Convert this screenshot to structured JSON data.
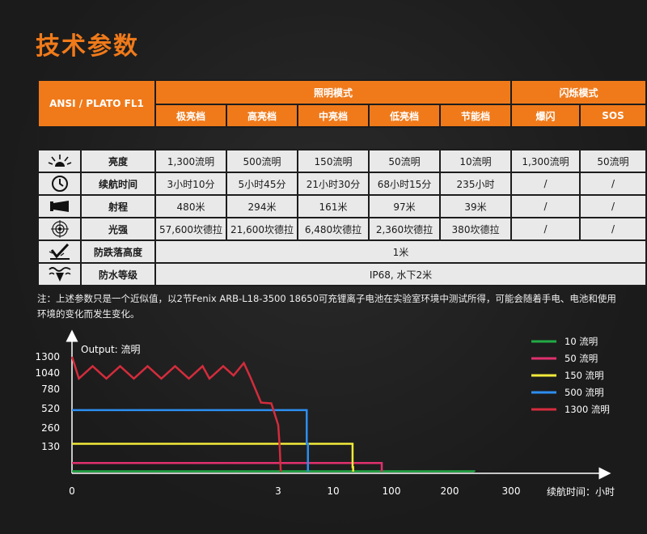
{
  "page_title": "技术参数",
  "table": {
    "model": "ANSI / PLATO FL1",
    "group_lighting": "照明模式",
    "group_flash": "闪烁模式",
    "modes": [
      "极亮档",
      "高亮档",
      "中亮档",
      "低亮档",
      "节能档",
      "爆闪",
      "SOS"
    ],
    "rows": [
      {
        "icon": "brightness-icon",
        "label": "亮度",
        "values": [
          "1,300流明",
          "500流明",
          "150流明",
          "50流明",
          "10流明",
          "1,300流明",
          "50流明"
        ]
      },
      {
        "icon": "clock-icon",
        "label": "续航时间",
        "values": [
          "3小时10分",
          "5小时45分",
          "21小时30分",
          "68小时15分",
          "235小时",
          "/",
          "/"
        ]
      },
      {
        "icon": "beam-distance-icon",
        "label": "射程",
        "values": [
          "480米",
          "294米",
          "161米",
          "97米",
          "39米",
          "/",
          "/"
        ]
      },
      {
        "icon": "target-icon",
        "label": "光强",
        "values": [
          "57,600坎德拉",
          "21,600坎德拉",
          "6,480坎德拉",
          "2,360坎德拉",
          "380坎德拉",
          "/",
          "/"
        ]
      }
    ],
    "span_rows": [
      {
        "icon": "impact-icon",
        "label": "防跌落高度",
        "value": "1米"
      },
      {
        "icon": "water-icon",
        "label": "防水等级",
        "value": "IP68, 水下2米"
      }
    ]
  },
  "note": "注：上述参数只是一个近似值，以2节Fenix ARB-L18-3500 18650可充锂离子电池在实验室环境中测试所得，可能会随着手电、电池和使用环境的变化而发生变化。",
  "chart_data": {
    "type": "line",
    "ylabel": "Output: 流明",
    "xlabel": "续航时间：小时",
    "y_ticks": [
      1300,
      1040,
      780,
      520,
      260,
      130
    ],
    "x_ticks": [
      "0",
      "3",
      "10",
      "100",
      "200",
      "300"
    ],
    "series": [
      {
        "name": "10 流明",
        "color": "#22aa44",
        "points": [
          [
            0,
            10
          ],
          [
            235,
            10
          ],
          [
            240,
            0
          ]
        ]
      },
      {
        "name": "50 流明",
        "color": "#e0306e",
        "points": [
          [
            0,
            50
          ],
          [
            68,
            50
          ],
          [
            68.25,
            0
          ]
        ]
      },
      {
        "name": "150 流明",
        "color": "#f2ea3a",
        "points": [
          [
            0,
            150
          ],
          [
            21.5,
            150
          ],
          [
            21.5,
            30
          ],
          [
            22,
            0
          ]
        ]
      },
      {
        "name": "500 流明",
        "color": "#2d8ef0",
        "points": [
          [
            0,
            500
          ],
          [
            5.5,
            500
          ],
          [
            5.6,
            150
          ],
          [
            5.75,
            0
          ]
        ]
      },
      {
        "name": "1300 流明",
        "color": "#d42c3c",
        "points": [
          [
            0,
            1300
          ],
          [
            0.03,
            1200
          ],
          [
            0.1,
            950
          ],
          [
            0.3,
            1150
          ],
          [
            0.5,
            950
          ],
          [
            0.7,
            1150
          ],
          [
            0.9,
            950
          ],
          [
            1.1,
            1150
          ],
          [
            1.3,
            950
          ],
          [
            1.5,
            1150
          ],
          [
            1.7,
            950
          ],
          [
            1.9,
            1150
          ],
          [
            2.0,
            950
          ],
          [
            2.2,
            1150
          ],
          [
            2.35,
            1000
          ],
          [
            2.5,
            1200
          ],
          [
            2.6,
            960
          ],
          [
            2.75,
            600
          ],
          [
            2.9,
            590
          ],
          [
            3.0,
            300
          ],
          [
            3.1,
            130
          ],
          [
            3.17,
            0
          ]
        ]
      }
    ]
  }
}
